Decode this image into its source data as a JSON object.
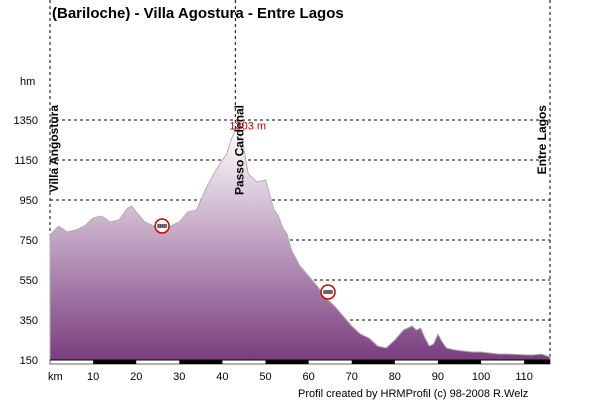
{
  "chart_data": {
    "type": "area",
    "title": "(Bariloche) - Villa Agostura - Entre Lagos",
    "ylabel": "hm",
    "xlabel": "km",
    "ylim": [
      150,
      1350
    ],
    "xlim": [
      0,
      116
    ],
    "y_ticks": [
      150,
      350,
      550,
      750,
      950,
      1150,
      1350
    ],
    "x_ticks": [
      10,
      20,
      30,
      40,
      50,
      60,
      70,
      80,
      90,
      100,
      110
    ],
    "grid": true,
    "peak_label": "1303 m",
    "places": [
      {
        "label": "Villa Angostura",
        "km": 0
      },
      {
        "label": "Passo Cardenal",
        "km": 43
      },
      {
        "label": "Entre Lagos",
        "km": 116
      }
    ],
    "markers": [
      {
        "name": "border-control",
        "km": 26,
        "elevation": 820
      },
      {
        "name": "border-control",
        "km": 64.5,
        "elevation": 490
      }
    ],
    "credit": "Profil created by HRMProfil (c) 98-2008 R.Welz",
    "fill_top": "#ffffff",
    "fill_bottom": "#7a3d7e",
    "series": [
      {
        "x": [
          0,
          2,
          4,
          6,
          8,
          10,
          12,
          14,
          16,
          18,
          19,
          20,
          22,
          24,
          26,
          28,
          30,
          32,
          34,
          36,
          38,
          40,
          41,
          42,
          43,
          44,
          45,
          46,
          47,
          48,
          50,
          52,
          53,
          54,
          55,
          56,
          58,
          60,
          62,
          64,
          66,
          68,
          70,
          72,
          74,
          76,
          78,
          80,
          82,
          84,
          85,
          86,
          87,
          88,
          89,
          90,
          91,
          92,
          94,
          96,
          98,
          100,
          102,
          104,
          106,
          108,
          110,
          112,
          114,
          116
        ],
        "values": [
          775,
          820,
          790,
          800,
          820,
          860,
          870,
          840,
          850,
          910,
          920,
          890,
          840,
          820,
          800,
          820,
          840,
          890,
          900,
          1000,
          1080,
          1150,
          1180,
          1250,
          1303,
          1290,
          1200,
          1080,
          1060,
          1040,
          1050,
          900,
          870,
          810,
          780,
          700,
          620,
          570,
          520,
          460,
          420,
          370,
          320,
          280,
          260,
          220,
          210,
          250,
          300,
          320,
          300,
          310,
          260,
          220,
          230,
          280,
          240,
          210,
          200,
          195,
          190,
          190,
          185,
          180,
          180,
          178,
          176,
          175,
          180,
          165
        ]
      }
    ]
  }
}
